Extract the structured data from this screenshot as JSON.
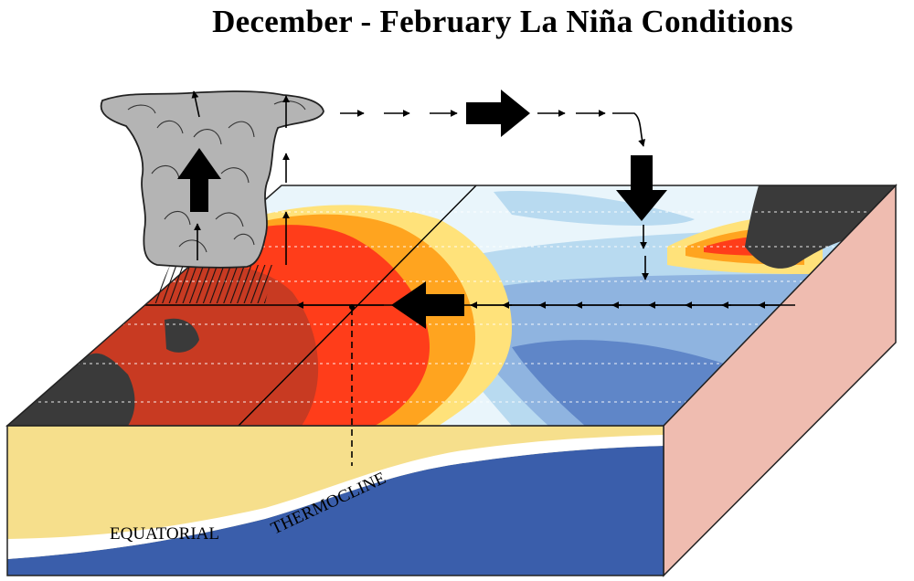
{
  "title": "December - February La Niña Conditions",
  "labels": {
    "equatorial": "EQUATORIAL",
    "thermocline": "THERMOCLINE"
  },
  "colors": {
    "warm_pool": "#ff3d1a",
    "warm_orange": "#ffa41f",
    "warm_yellow": "#ffe27a",
    "neutral": "#e9f5fb",
    "cool_light": "#b8daf0",
    "cool_mid": "#8fb4e0",
    "cool_deep": "#5f86c8",
    "land": "#3a3a3a",
    "ocean_warm_layer": "#f6df8c",
    "ocean_deep": "#3a5eab",
    "block_side": "#efbcb0",
    "cloud": "#b4b4b4"
  },
  "icons": [
    "convection-cloud-icon",
    "arrow-icon"
  ]
}
